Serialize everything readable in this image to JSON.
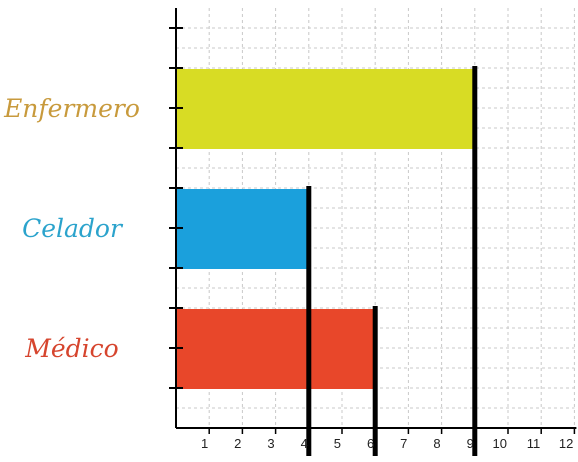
{
  "chart_data": {
    "type": "bar",
    "orientation": "horizontal",
    "categories": [
      "Enfermero",
      "Celador",
      "Médico"
    ],
    "values": [
      9,
      4,
      6
    ],
    "colors": [
      "#d8dc24",
      "#1ba0dc",
      "#e8472a"
    ],
    "label_colors": [
      "#c89a3c",
      "#2ba3cc",
      "#d6452e"
    ],
    "xticks": [
      "1",
      "2",
      "3",
      "4",
      "5",
      "6",
      "7",
      "8",
      "9",
      "10",
      "11",
      "12"
    ],
    "xlim": [
      0,
      12
    ],
    "grid": true,
    "title": "",
    "xlabel": "",
    "ylabel": ""
  }
}
